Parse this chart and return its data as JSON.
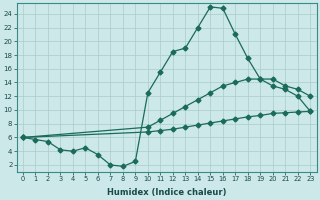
{
  "xlabel": "Humidex (Indice chaleur)",
  "xlim": [
    -0.5,
    23.5
  ],
  "ylim": [
    1.0,
    25.5
  ],
  "xticks": [
    0,
    1,
    2,
    3,
    4,
    5,
    6,
    7,
    8,
    9,
    10,
    11,
    12,
    13,
    14,
    15,
    16,
    17,
    18,
    19,
    20,
    21,
    22,
    23
  ],
  "yticks": [
    2,
    4,
    6,
    8,
    10,
    12,
    14,
    16,
    18,
    20,
    22,
    24
  ],
  "bg_color": "#cce8e8",
  "grid_color": "#aacccc",
  "line_color": "#1a6b5a",
  "line1_x": [
    0,
    1,
    2,
    3,
    4,
    5,
    6,
    7,
    8,
    9,
    10,
    11,
    12,
    13,
    14,
    15,
    16,
    17,
    18,
    19,
    20,
    21,
    22,
    23
  ],
  "line1_y": [
    6.0,
    5.7,
    5.4,
    4.2,
    4.0,
    4.5,
    3.5,
    2.0,
    1.8,
    2.5,
    12.5,
    15.5,
    18.5,
    19.0,
    22.0,
    25.0,
    24.8,
    21.0,
    17.5,
    14.5,
    13.5,
    13.0,
    12.0,
    9.8
  ],
  "line2_x": [
    0,
    10,
    11,
    12,
    13,
    14,
    15,
    16,
    17,
    18,
    19,
    20,
    21,
    22,
    23
  ],
  "line2_y": [
    6.0,
    7.5,
    8.5,
    9.5,
    10.5,
    11.5,
    12.5,
    13.5,
    14.0,
    14.5,
    14.5,
    14.5,
    13.5,
    13.0,
    12.0
  ],
  "line3_x": [
    0,
    10,
    11,
    12,
    13,
    14,
    15,
    16,
    17,
    18,
    19,
    20,
    21,
    22,
    23
  ],
  "line3_y": [
    6.0,
    6.8,
    7.0,
    7.2,
    7.5,
    7.8,
    8.1,
    8.4,
    8.7,
    9.0,
    9.2,
    9.5,
    9.6,
    9.7,
    9.8
  ]
}
